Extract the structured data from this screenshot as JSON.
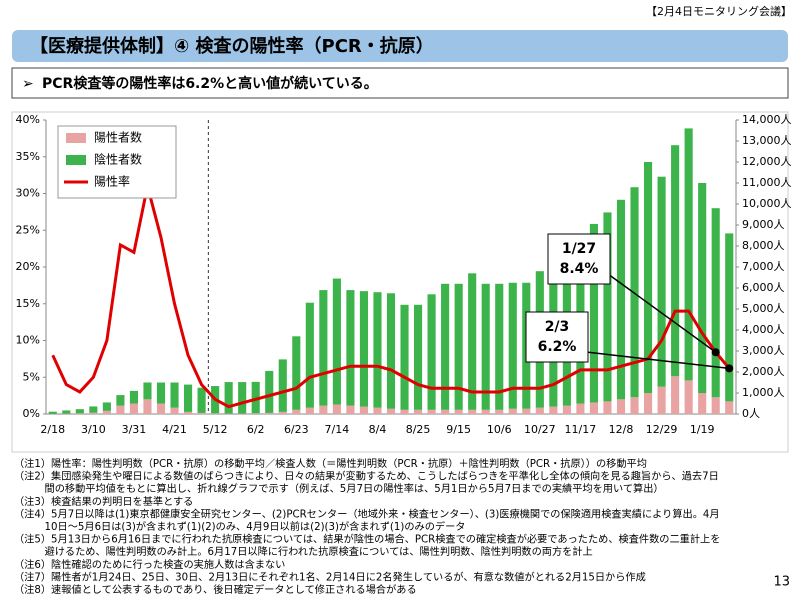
{
  "header": {
    "meeting": "【2月4日モニタリング会議】",
    "title": "【医療提供体制】④ 検査の陽性率（PCR・抗原）",
    "subtitle": "PCR検査等の陽性率は6.2%と高い値が続いている。"
  },
  "chart_data": {
    "type": "bar-line",
    "categories": [
      "2/18",
      null,
      null,
      "3/10",
      null,
      null,
      "3/31",
      null,
      null,
      "4/21",
      null,
      null,
      "5/12",
      null,
      null,
      "6/2",
      null,
      null,
      "6/23",
      null,
      null,
      "7/14",
      null,
      null,
      "8/4",
      null,
      null,
      "8/25",
      null,
      null,
      "9/15",
      null,
      null,
      "10/6",
      null,
      null,
      "10/27",
      null,
      null,
      "11/17",
      null,
      null,
      "12/8",
      null,
      null,
      "12/29",
      null,
      null,
      "1/19",
      null,
      null
    ],
    "series": [
      {
        "name": "陽性者数",
        "color": "#e8a3a3",
        "axis": "y2",
        "values": [
          10,
          20,
          30,
          60,
          150,
          400,
          500,
          700,
          500,
          300,
          100,
          50,
          30,
          20,
          20,
          30,
          50,
          100,
          200,
          300,
          400,
          450,
          400,
          350,
          300,
          250,
          200,
          200,
          200,
          200,
          200,
          200,
          200,
          200,
          250,
          250,
          300,
          350,
          400,
          500,
          550,
          600,
          700,
          800,
          1000,
          1300,
          1800,
          1600,
          1000,
          800,
          600
        ]
      },
      {
        "name": "陰性者数",
        "color": "#3cb44b",
        "axis": "y2",
        "values": [
          100,
          150,
          200,
          300,
          400,
          500,
          600,
          800,
          1000,
          1200,
          1300,
          1200,
          1300,
          1500,
          1500,
          1500,
          2000,
          2500,
          3500,
          5000,
          5500,
          6000,
          5500,
          5500,
          5500,
          5500,
          5000,
          5000,
          5500,
          6000,
          6000,
          6500,
          6000,
          6000,
          6000,
          6000,
          6500,
          7000,
          7500,
          8000,
          8500,
          9000,
          9500,
          10000,
          11000,
          10000,
          11000,
          12000,
          10000,
          9000,
          8000
        ]
      },
      {
        "name": "陽性率",
        "color": "#e00000",
        "values": [
          8,
          4,
          3,
          5,
          10,
          23,
          22,
          31,
          24,
          15,
          8,
          4,
          2,
          1,
          1.5,
          2,
          2.5,
          3,
          3.5,
          5,
          5.5,
          6,
          6.5,
          6.5,
          6.5,
          6,
          5,
          4,
          3.5,
          3.5,
          3.5,
          3,
          3,
          3,
          3.5,
          3.5,
          3.5,
          4,
          5,
          6,
          6,
          6,
          6.5,
          7,
          7.5,
          10,
          14,
          14,
          11,
          8.4,
          6.2
        ]
      }
    ],
    "ylim": [
      0,
      40
    ],
    "yticks": [
      {
        "value": 0,
        "label": "0%"
      },
      {
        "value": 5,
        "label": "5%"
      },
      {
        "value": 10,
        "label": "10%"
      },
      {
        "value": 15,
        "label": "15%"
      },
      {
        "value": 20,
        "label": "20%"
      },
      {
        "value": 25,
        "label": "25%"
      },
      {
        "value": 30,
        "label": "30%"
      },
      {
        "value": 35,
        "label": "35%"
      },
      {
        "value": 40,
        "label": "40%"
      }
    ],
    "y2lim": [
      0,
      14000
    ],
    "y2ticks": [
      {
        "value": 0,
        "label": "0人"
      },
      {
        "value": 1000,
        "label": "1,000人"
      },
      {
        "value": 2000,
        "label": "2,000人"
      },
      {
        "value": 3000,
        "label": "3,000人"
      },
      {
        "value": 4000,
        "label": "4,000人"
      },
      {
        "value": 5000,
        "label": "5,000人"
      },
      {
        "value": 6000,
        "label": "6,000人"
      },
      {
        "value": 7000,
        "label": "7,000人"
      },
      {
        "value": 8000,
        "label": "8,000人"
      },
      {
        "value": 9000,
        "label": "9,000人"
      },
      {
        "value": 10000,
        "label": "10,000人"
      },
      {
        "value": 11000,
        "label": "11,000人"
      },
      {
        "value": 12000,
        "label": "12,000人"
      },
      {
        "value": 13000,
        "label": "13,000人"
      },
      {
        "value": 14000,
        "label": "14,000人"
      }
    ],
    "annotations": [
      {
        "date": "1/27",
        "label": "8.4%"
      },
      {
        "date": "2/3",
        "label": "6.2%"
      }
    ],
    "legend": "top-left"
  },
  "notes": [
    "（注1）陽性率：陽性判明数（PCR・抗原）の移動平均／検査人数（＝陽性判明数（PCR・抗原）＋陰性判明数（PCR・抗原））の移動平均",
    "（注2）集団感染発生や曜日による数値のばらつきにより、日々の結果が変動するため、こうしたばらつきを平準化し全体の傾向を見る趣旨から、過去7日",
    "　　　間の移動平均値をもとに算出し、折れ線グラフで示す（例えば、5月7日の陽性率は、5月1日から5月7日までの実績平均を用いて算出）",
    "（注3）検査結果の判明日を基準とする",
    "（注4）5月7日以降は(1)東京都健康安全研究センター、(2)PCRセンター（地域外来・検査センター）、(3)医療機関での保険適用検査実績により算出。4月",
    "　　　10日～5月6日は(3)が含まれず(1)(2)のみ、4月9日以前は(2)(3)が含まれず(1)のみのデータ",
    "（注5）5月13日から6月16日までに行われた抗原検査については、結果が陰性の場合、PCR検査での確定検査が必要であったため、検査件数の二重計上を",
    "　　　避けるため、陽性判明数のみ計上。6月17日以降に行われた抗原検査については、陽性判明数、陰性判明数の両方を計上",
    "（注6）陰性確認のために行った検査の実施人数は含まない",
    "（注7）陽性者が1月24日、25日、30日、2月13日にそれぞれ1名、2月14日に2名発生しているが、有意な数値がとれる2月15日から作成",
    "（注8）速報値として公表するものであり、後日確定データとして修正される場合がある"
  ],
  "page_number": "13"
}
